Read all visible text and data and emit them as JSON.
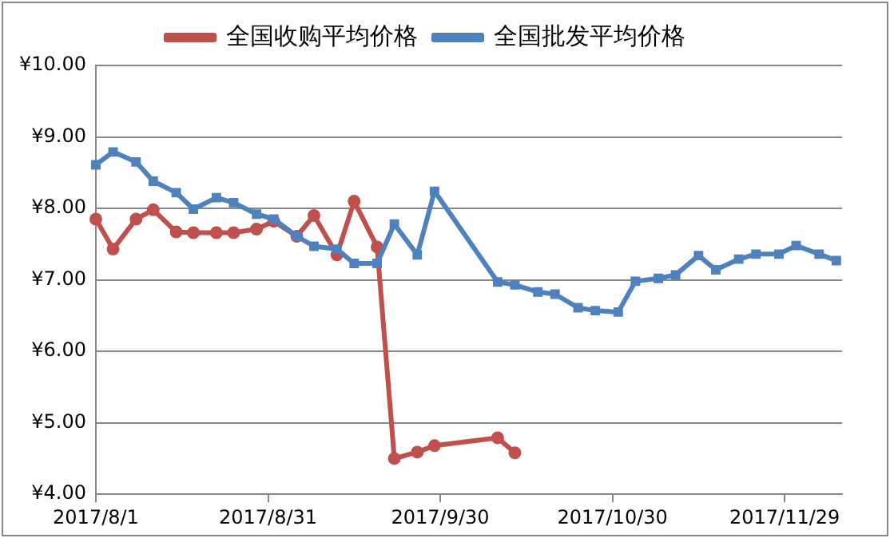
{
  "chart_data": {
    "type": "line",
    "x": [
      "2017-08-01",
      "2017-08-04",
      "2017-08-08",
      "2017-08-11",
      "2017-08-15",
      "2017-08-18",
      "2017-08-22",
      "2017-08-25",
      "2017-08-29",
      "2017-09-01",
      "2017-09-05",
      "2017-09-08",
      "2017-09-12",
      "2017-09-15",
      "2017-09-19",
      "2017-09-22",
      "2017-09-26",
      "2017-09-29",
      "2017-10-10",
      "2017-10-13",
      "2017-10-17",
      "2017-10-20",
      "2017-10-24",
      "2017-10-27",
      "2017-10-31",
      "2017-11-03",
      "2017-11-07",
      "2017-11-10",
      "2017-11-14",
      "2017-11-17",
      "2017-11-21",
      "2017-11-24",
      "2017-11-28",
      "2017-12-01",
      "2017-12-05",
      "2017-12-08"
    ],
    "series": [
      {
        "name": "全国收购平均价格",
        "color": "#c0504d",
        "marker": "circle",
        "values": [
          7.85,
          7.43,
          7.85,
          7.98,
          7.67,
          7.66,
          7.66,
          7.66,
          7.71,
          7.82,
          7.61,
          7.9,
          7.35,
          8.1,
          7.46,
          4.5,
          4.59,
          4.68,
          4.79,
          4.58,
          null,
          null,
          null,
          null,
          null,
          null,
          null,
          null,
          null,
          null,
          null,
          null,
          null,
          null,
          null,
          null
        ]
      },
      {
        "name": "全国批发平均价格",
        "color": "#4f81bd",
        "marker": "square",
        "values": [
          8.61,
          8.79,
          8.65,
          8.38,
          8.22,
          7.99,
          8.15,
          8.08,
          7.92,
          7.85,
          7.61,
          7.47,
          7.43,
          7.23,
          7.23,
          7.78,
          7.35,
          8.24,
          6.97,
          6.93,
          6.83,
          6.8,
          6.61,
          6.57,
          6.55,
          6.98,
          7.02,
          7.07,
          7.34,
          7.14,
          7.29,
          7.36,
          7.36,
          7.48,
          7.36,
          7.27
        ]
      }
    ],
    "xlim": [
      "2017-08-01",
      "2017-12-09"
    ],
    "xticks": [
      {
        "value": "2017-08-01",
        "label": "2017/8/1"
      },
      {
        "value": "2017-08-31",
        "label": "2017/8/31"
      },
      {
        "value": "2017-09-30",
        "label": "2017/9/30"
      },
      {
        "value": "2017-10-30",
        "label": "2017/10/30"
      },
      {
        "value": "2017-11-29",
        "label": "2017/11/29"
      }
    ],
    "ylim": [
      4,
      10
    ],
    "yticks": [
      {
        "value": 4,
        "label": "¥4.00"
      },
      {
        "value": 5,
        "label": "¥5.00"
      },
      {
        "value": 6,
        "label": "¥6.00"
      },
      {
        "value": 7,
        "label": "¥7.00"
      },
      {
        "value": 8,
        "label": "¥8.00"
      },
      {
        "value": 9,
        "label": "¥9.00"
      },
      {
        "value": 10,
        "label": "¥10.00"
      }
    ],
    "grid": "y",
    "legend": "top",
    "line_style": "solid"
  }
}
